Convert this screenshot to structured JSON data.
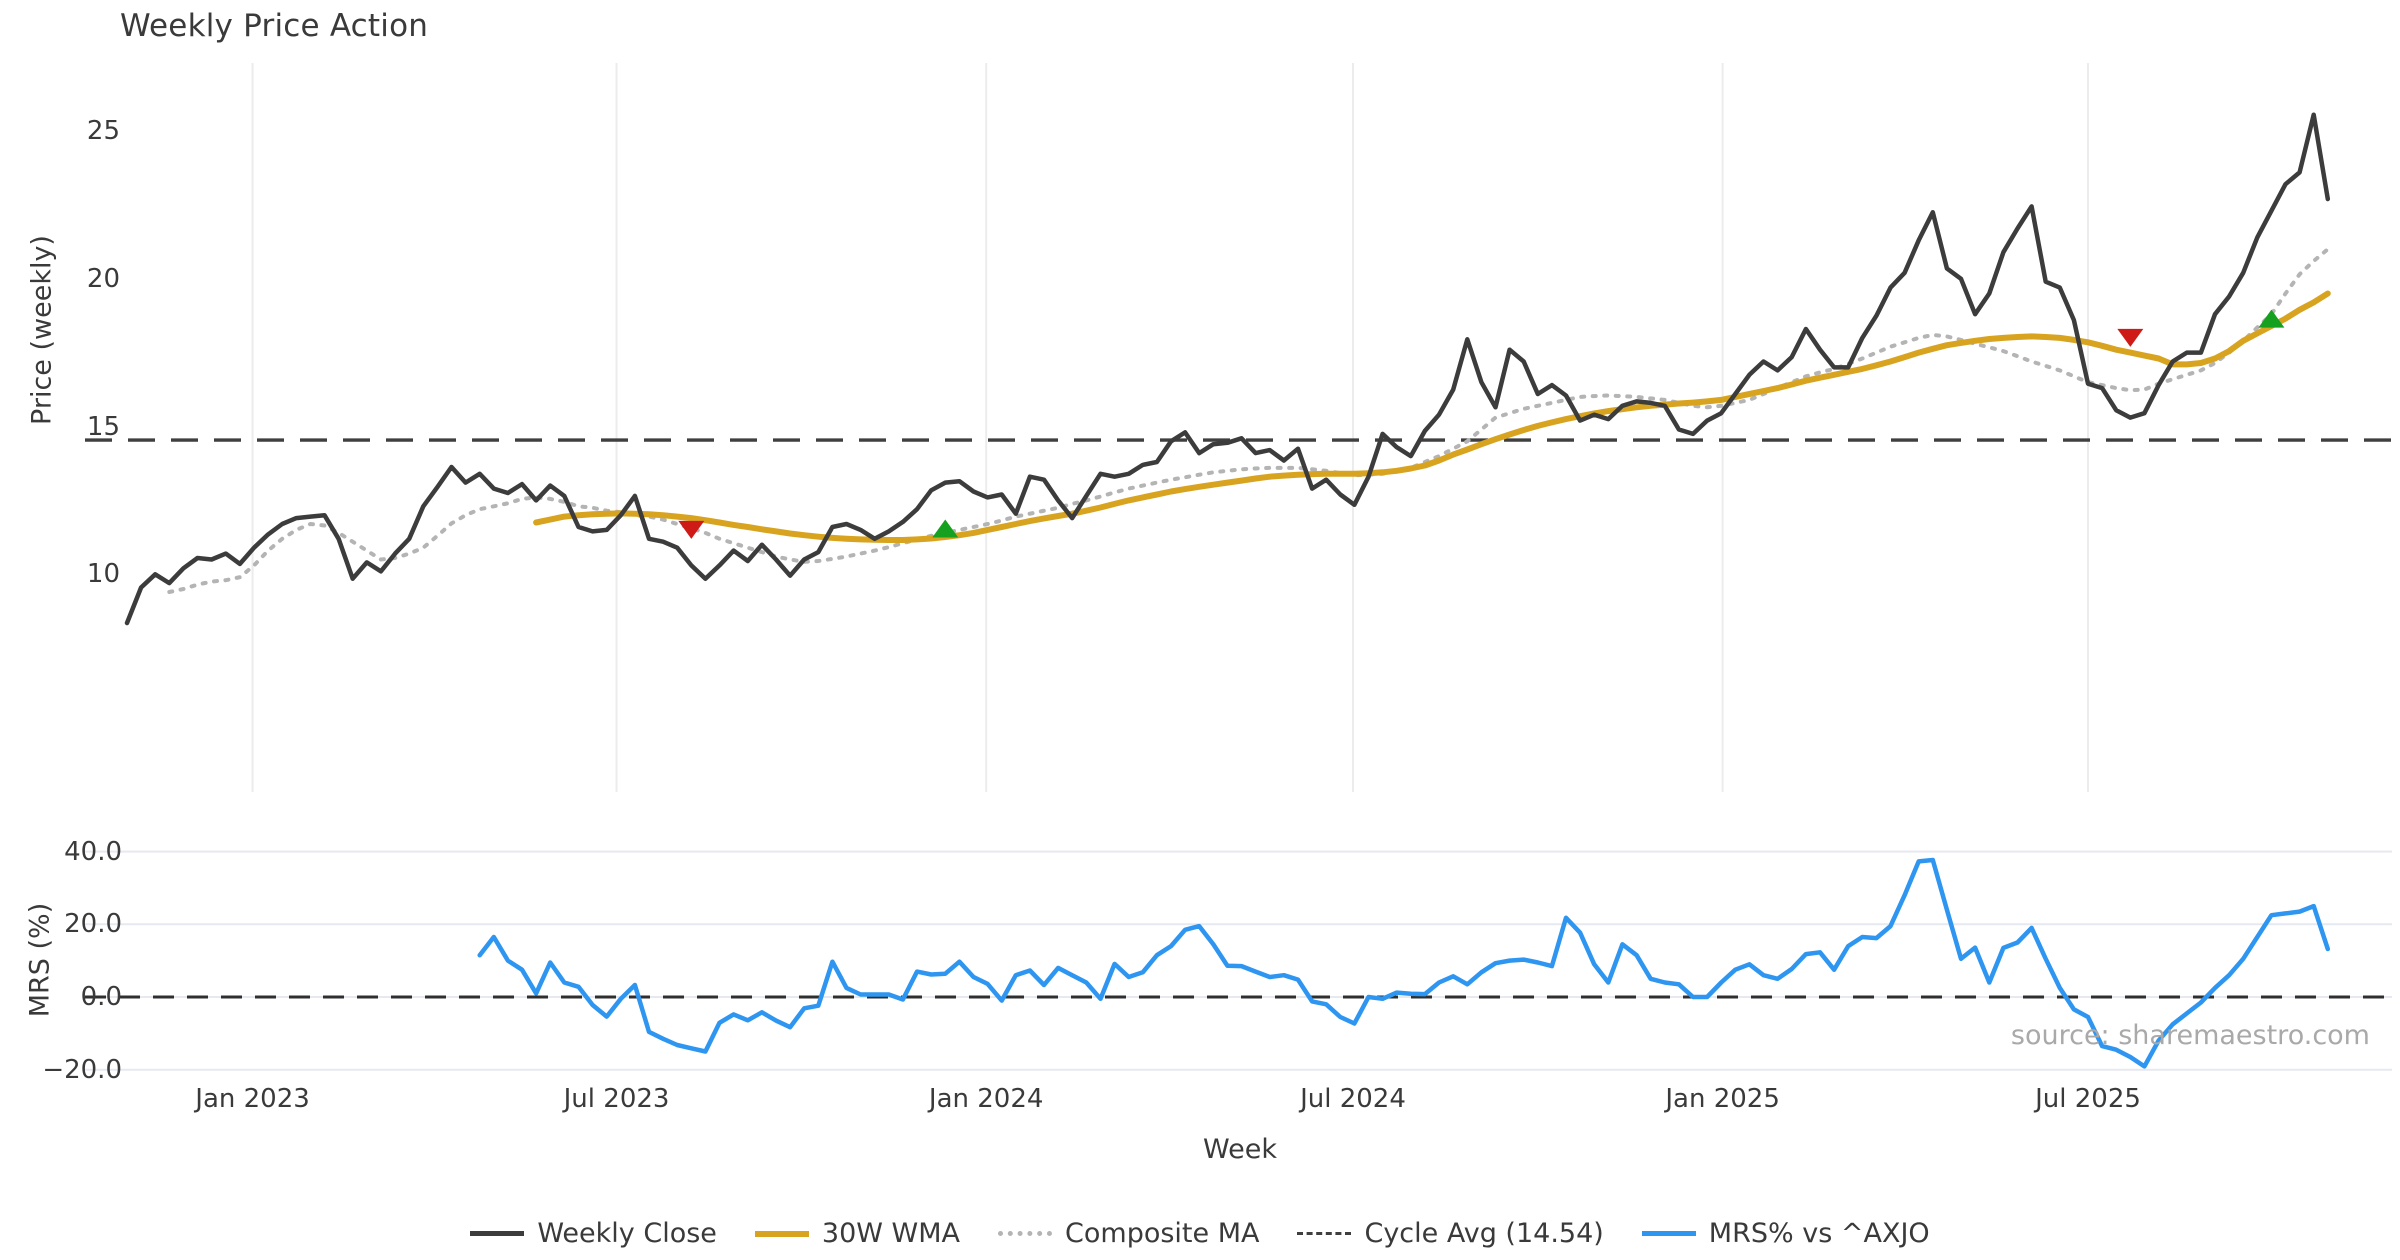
{
  "title": "Weekly Price Action",
  "source_note": "source: sharemaestro.com",
  "x_axis": {
    "label": "Week",
    "ticks": [
      {
        "week": 8.9,
        "label": "Jan 2023"
      },
      {
        "week": 34.7,
        "label": "Jul 2023"
      },
      {
        "week": 60.9,
        "label": "Jan 2024"
      },
      {
        "week": 86.9,
        "label": "Jul 2024"
      },
      {
        "week": 113.1,
        "label": "Jan 2025"
      },
      {
        "week": 139.0,
        "label": "Jul 2025"
      }
    ]
  },
  "colors": {
    "close": "#3c3c3c",
    "wma": "#d8a420",
    "composite": "#b4b4b4",
    "cycle": "#3f3f3f",
    "mrs": "#2e96f0",
    "buy": "#15a01f",
    "sell": "#cf1b17",
    "grid_v": "#ececec",
    "grid_h": "#e7e9f0",
    "zero": "#2f2f2f",
    "text": "#3a3a3a",
    "muted": "#a9a9a9"
  },
  "legend": [
    {
      "label": "Weekly Close",
      "swatch": "solid",
      "color_key": "close"
    },
    {
      "label": "30W WMA",
      "swatch": "solid",
      "color_key": "wma"
    },
    {
      "label": "Composite MA",
      "swatch": "dotted",
      "color_key": "composite"
    },
    {
      "label": "Cycle Avg (14.54)",
      "swatch": "dashed",
      "color_key": "cycle"
    },
    {
      "label": "MRS% vs ^AXJO",
      "swatch": "solid",
      "color_key": "mrs"
    }
  ],
  "chart_data": [
    {
      "type": "line",
      "title": "Weekly Price Action",
      "ylabel": "Price (weekly)",
      "ylim": [
        7.5,
        27.5
      ],
      "x_range_weeks": [
        0,
        156
      ],
      "grid": "vertical-only",
      "yticks": [
        {
          "value": 25,
          "label": "25"
        },
        {
          "value": 20,
          "label": "20"
        },
        {
          "value": 15,
          "label": "15"
        },
        {
          "value": 10,
          "label": "10"
        }
      ],
      "cycle_avg": 14.54,
      "series": [
        {
          "name": "Weekly Close",
          "style": "solid",
          "color_key": "close",
          "start_week": 0,
          "values": [
            8.35,
            9.55,
            10.0,
            9.7,
            10.2,
            10.55,
            10.5,
            10.7,
            10.35,
            10.9,
            11.35,
            11.7,
            11.9,
            11.95,
            12.0,
            11.2,
            9.85,
            10.4,
            10.1,
            10.7,
            11.2,
            12.3,
            12.95,
            13.63,
            13.1,
            13.4,
            12.9,
            12.75,
            13.05,
            12.5,
            13.0,
            12.65,
            11.6,
            11.45,
            11.5,
            12.0,
            12.65,
            11.2,
            11.1,
            10.9,
            10.3,
            9.85,
            10.3,
            10.8,
            10.45,
            11.0,
            10.5,
            9.95,
            10.5,
            10.75,
            11.6,
            11.7,
            11.5,
            11.2,
            11.45,
            11.77,
            12.2,
            12.84,
            13.1,
            13.15,
            12.8,
            12.6,
            12.7,
            12.05,
            13.3,
            13.2,
            12.5,
            11.9,
            12.65,
            13.4,
            13.3,
            13.4,
            13.7,
            13.8,
            14.5,
            14.8,
            14.1,
            14.4,
            14.45,
            14.6,
            14.1,
            14.2,
            13.85,
            14.25,
            12.9,
            13.2,
            12.7,
            12.35,
            13.3,
            14.75,
            14.3,
            14.0,
            14.85,
            15.4,
            16.25,
            17.95,
            16.5,
            15.65,
            17.6,
            17.2,
            16.1,
            16.4,
            16.05,
            15.2,
            15.4,
            15.25,
            15.7,
            15.85,
            15.8,
            15.7,
            14.9,
            14.75,
            15.2,
            15.45,
            16.1,
            16.75,
            17.2,
            16.9,
            17.35,
            18.3,
            17.6,
            17.0,
            17.0,
            18.0,
            18.75,
            19.7,
            20.2,
            21.3,
            22.25,
            20.35,
            20.0,
            18.8,
            19.5,
            20.9,
            21.7,
            22.45,
            19.9,
            19.7,
            18.6,
            16.45,
            16.3,
            15.55,
            15.3,
            15.45,
            16.4,
            17.2,
            17.5,
            17.5,
            18.8,
            19.4,
            20.2,
            21.4,
            22.3,
            23.2,
            23.6,
            25.55,
            22.7
          ]
        },
        {
          "name": "30W WMA",
          "style": "solid",
          "color_key": "wma",
          "start_week": 29,
          "values": [
            11.75,
            11.85,
            11.95,
            12.0,
            12.03,
            12.05,
            12.06,
            12.05,
            12.03,
            12.0,
            11.95,
            11.9,
            11.83,
            11.75,
            11.67,
            11.6,
            11.52,
            11.45,
            11.38,
            11.32,
            11.27,
            11.23,
            11.2,
            11.18,
            11.17,
            11.16,
            11.16,
            11.18,
            11.21,
            11.26,
            11.32,
            11.4,
            11.5,
            11.6,
            11.7,
            11.8,
            11.89,
            11.97,
            12.05,
            12.15,
            12.26,
            12.38,
            12.5,
            12.6,
            12.7,
            12.8,
            12.88,
            12.96,
            13.03,
            13.1,
            13.17,
            13.24,
            13.3,
            13.34,
            13.37,
            13.39,
            13.4,
            13.4,
            13.4,
            13.42,
            13.45,
            13.5,
            13.58,
            13.68,
            13.85,
            14.05,
            14.22,
            14.4,
            14.57,
            14.73,
            14.88,
            15.02,
            15.14,
            15.25,
            15.35,
            15.44,
            15.52,
            15.59,
            15.65,
            15.7,
            15.74,
            15.78,
            15.81,
            15.85,
            15.9,
            16.0,
            16.1,
            16.2,
            16.3,
            16.42,
            16.55,
            16.65,
            16.75,
            16.85,
            16.95,
            17.07,
            17.2,
            17.35,
            17.5,
            17.63,
            17.75,
            17.83,
            17.9,
            17.96,
            18.0,
            18.03,
            18.05,
            18.03,
            18.0,
            17.93,
            17.85,
            17.73,
            17.6,
            17.5,
            17.4,
            17.3,
            17.1,
            17.1,
            17.15,
            17.3,
            17.55,
            17.9,
            18.15,
            18.4,
            18.65,
            18.95,
            19.2,
            19.5
          ]
        },
        {
          "name": "Composite MA",
          "style": "dotted",
          "color_key": "composite",
          "start_week": 3,
          "values": [
            9.4,
            9.5,
            9.65,
            9.75,
            9.8,
            9.9,
            10.3,
            10.8,
            11.2,
            11.5,
            11.7,
            11.65,
            11.4,
            11.1,
            10.8,
            10.5,
            10.55,
            10.7,
            10.9,
            11.3,
            11.72,
            12.0,
            12.2,
            12.3,
            12.4,
            12.55,
            12.6,
            12.55,
            12.45,
            12.3,
            12.25,
            12.15,
            12.1,
            12.0,
            11.95,
            11.85,
            11.7,
            11.55,
            11.4,
            11.2,
            11.05,
            10.9,
            10.75,
            10.6,
            10.5,
            10.42,
            10.45,
            10.52,
            10.6,
            10.7,
            10.8,
            10.92,
            11.05,
            11.18,
            11.3,
            11.4,
            11.5,
            11.6,
            11.7,
            11.82,
            11.95,
            12.05,
            12.15,
            12.25,
            12.38,
            12.5,
            12.63,
            12.77,
            12.9,
            13.0,
            13.1,
            13.2,
            13.28,
            13.37,
            13.45,
            13.5,
            13.55,
            13.58,
            13.6,
            13.6,
            13.6,
            13.55,
            13.5,
            13.42,
            13.35,
            13.37,
            13.4,
            13.5,
            13.6,
            13.8,
            14.0,
            14.25,
            14.5,
            14.9,
            15.3,
            15.45,
            15.6,
            15.7,
            15.8,
            15.9,
            16.0,
            16.03,
            16.05,
            16.03,
            16.0,
            15.95,
            15.9,
            15.8,
            15.7,
            15.65,
            15.7,
            15.8,
            15.9,
            16.1,
            16.3,
            16.5,
            16.7,
            16.83,
            16.95,
            17.12,
            17.3,
            17.5,
            17.7,
            17.85,
            18.0,
            18.1,
            18.05,
            17.93,
            17.8,
            17.68,
            17.55,
            17.38,
            17.2,
            17.05,
            16.9,
            16.7,
            16.5,
            16.4,
            16.3,
            16.23,
            16.25,
            16.45,
            16.6,
            16.75,
            16.9,
            17.15,
            17.5,
            17.9,
            18.35,
            18.8,
            19.5,
            20.15,
            20.6,
            21.0
          ]
        },
        {
          "name": "Cycle Avg",
          "style": "dashed",
          "color_key": "cycle",
          "constant": 14.54
        }
      ],
      "signals": [
        {
          "type": "sell",
          "week": 40,
          "value": 11.5
        },
        {
          "type": "buy",
          "week": 58,
          "value": 11.55
        },
        {
          "type": "sell",
          "week": 142,
          "value": 18.0
        },
        {
          "type": "buy",
          "week": 152,
          "value": 18.65
        }
      ]
    },
    {
      "type": "line",
      "ylabel": "MRS (%)",
      "ylim": [
        -25,
        45
      ],
      "grid": "horizontal-only",
      "zero_line": 0,
      "yticks": [
        {
          "value": 40,
          "label": "40.0"
        },
        {
          "value": 20,
          "label": "20.0"
        },
        {
          "value": 0,
          "label": "0.0"
        },
        {
          "value": -20,
          "label": "−20.0"
        }
      ],
      "series": [
        {
          "name": "MRS% vs ^AXJO",
          "style": "solid",
          "color_key": "mrs",
          "start_week": 25,
          "values": [
            11.5,
            16.5,
            10.0,
            7.5,
            1.0,
            9.5,
            4.0,
            2.8,
            -2.2,
            -5.4,
            -0.5,
            3.3,
            -9.6,
            -11.5,
            -13.2,
            -14.1,
            -15.0,
            -7.1,
            -4.8,
            -6.4,
            -4.2,
            -6.5,
            -8.3,
            -3.1,
            -2.4,
            9.7,
            2.5,
            0.7,
            0.7,
            0.7,
            -0.7,
            7.0,
            6.2,
            6.4,
            9.7,
            5.5,
            3.6,
            -1.0,
            6.0,
            7.3,
            3.3,
            8.0,
            6.0,
            4.0,
            -0.5,
            9.1,
            5.5,
            6.8,
            11.5,
            14.0,
            18.5,
            19.5,
            14.5,
            8.6,
            8.5,
            7.0,
            5.5,
            6.0,
            4.8,
            -1.2,
            -2.0,
            -5.5,
            -7.3,
            0.0,
            -0.5,
            1.2,
            0.9,
            0.8,
            4.0,
            5.7,
            3.5,
            6.8,
            9.3,
            10.0,
            10.3,
            9.5,
            8.5,
            21.8,
            17.7,
            9.0,
            4.0,
            14.5,
            11.5,
            5.0,
            4.0,
            3.5,
            0.0,
            0.0,
            4.0,
            7.5,
            9.0,
            6.0,
            5.0,
            7.7,
            11.8,
            12.3,
            7.5,
            14.0,
            16.5,
            16.2,
            19.5,
            28.0,
            37.3,
            37.7,
            24.0,
            10.5,
            13.6,
            4.0,
            13.5,
            15.0,
            19.0,
            10.5,
            2.5,
            -3.4,
            -5.5,
            -13.5,
            -14.5,
            -16.5,
            -19.1,
            -12.0,
            -7.5,
            -4.5,
            -1.5,
            2.5,
            6.0,
            10.5,
            16.5,
            22.5,
            23.0,
            23.5,
            25.0,
            13.2
          ]
        }
      ]
    }
  ]
}
